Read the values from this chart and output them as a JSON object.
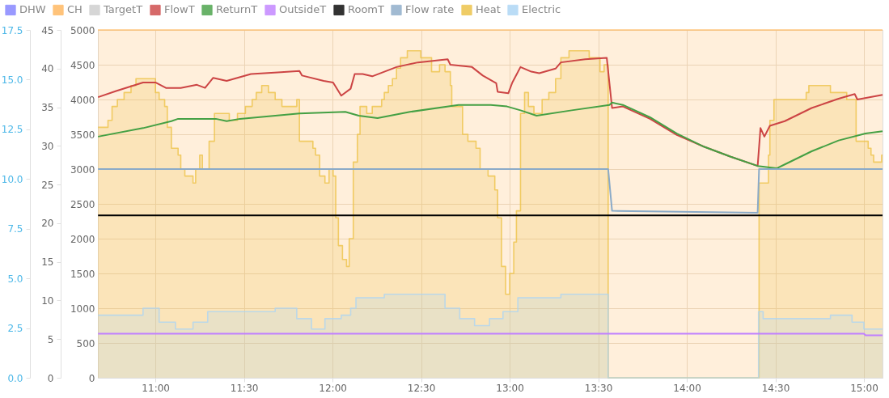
{
  "chart_data": {
    "type": "line",
    "xlim": [
      10.675,
      15.105
    ],
    "xticks": [
      {
        "value": 11,
        "label": "11:00"
      },
      {
        "value": 11.5,
        "label": "11:30"
      },
      {
        "value": 12,
        "label": "12:00"
      },
      {
        "value": 12.5,
        "label": "12:30"
      },
      {
        "value": 13,
        "label": "13:00"
      },
      {
        "value": 13.5,
        "label": "13:30"
      },
      {
        "value": 14,
        "label": "14:00"
      },
      {
        "value": 14.5,
        "label": "14:30"
      },
      {
        "value": 15,
        "label": "15:00"
      }
    ],
    "ylim": [
      0,
      5000
    ],
    "yticks": [
      0,
      500,
      1000,
      1500,
      2000,
      2500,
      3000,
      3500,
      4000,
      4500,
      5000
    ],
    "y2lim": [
      0,
      45
    ],
    "y2ticks": [
      0,
      5,
      10,
      15,
      20,
      25,
      30,
      35,
      40,
      45
    ],
    "y3lim": [
      0,
      17.5
    ],
    "y3ticks": [
      {
        "value": 0,
        "label": "0.0"
      },
      2.5,
      {
        "value": 5,
        "label": "5.0"
      },
      7.5,
      {
        "value": 10,
        "label": "10.0"
      },
      12.5,
      {
        "value": 15,
        "label": "15.0"
      },
      17.5
    ],
    "grid": true,
    "legend": "top left",
    "series": [
      {
        "name": "DHW",
        "color": "#8080ff",
        "type": "area"
      },
      {
        "name": "CH",
        "color": "#ffb55a",
        "type": "area",
        "x": [
          10.675,
          15.105
        ],
        "values": [
          5000,
          5000
        ]
      },
      {
        "name": "TargetT",
        "color": "#cccccc",
        "type": "line",
        "axis": "y2"
      },
      {
        "name": "FlowT",
        "color": "#cc4444",
        "type": "line",
        "axis": "y2",
        "x": [
          10.676,
          10.778,
          10.93,
          11.0,
          11.059,
          11.143,
          11.234,
          11.28,
          11.326,
          11.402,
          11.539,
          11.691,
          11.813,
          11.828,
          11.95,
          12.003,
          12.049,
          12.102,
          12.125,
          12.17,
          12.224,
          12.361,
          12.482,
          12.65,
          12.665,
          12.787,
          12.848,
          12.924,
          12.932,
          12.992,
          13.015,
          13.061,
          13.122,
          13.167,
          13.259,
          13.289,
          13.426,
          13.548,
          13.578,
          13.639,
          13.792,
          13.944,
          14.096,
          14.248,
          14.4,
          14.416,
          14.438,
          14.469,
          14.553,
          14.705,
          14.857,
          14.948,
          14.963,
          15.105
        ],
        "values": [
          36.3,
          37.1,
          38.2,
          38.2,
          37.5,
          37.5,
          37.9,
          37.5,
          38.8,
          38.4,
          39.3,
          39.5,
          39.7,
          39.1,
          38.4,
          38.2,
          36.5,
          37.4,
          39.3,
          39.3,
          39.0,
          40.2,
          40.8,
          41.2,
          40.5,
          40.2,
          39.1,
          38.1,
          37.0,
          36.8,
          38.2,
          40.2,
          39.6,
          39.4,
          40.0,
          40.8,
          41.2,
          41.4,
          34.9,
          35.1,
          33.5,
          31.4,
          29.9,
          28.6,
          27.4,
          32.3,
          31.2,
          32.6,
          33.2,
          34.9,
          36.1,
          36.7,
          36.0,
          36.6
        ]
      },
      {
        "name": "ReturnT",
        "color": "#44a044",
        "type": "line",
        "axis": "y2",
        "x": [
          10.676,
          10.93,
          11.09,
          11.128,
          11.341,
          11.402,
          11.478,
          11.813,
          12.072,
          12.148,
          12.254,
          12.437,
          12.711,
          12.893,
          12.985,
          13.061,
          13.152,
          13.35,
          13.563,
          13.578,
          13.639,
          13.792,
          13.944,
          14.096,
          14.248,
          14.4,
          14.507,
          14.553,
          14.705,
          14.857,
          15.009,
          15.105
        ],
        "values": [
          31.2,
          32.3,
          33.2,
          33.5,
          33.5,
          33.2,
          33.5,
          34.2,
          34.4,
          33.9,
          33.6,
          34.4,
          35.3,
          35.3,
          35.1,
          34.6,
          33.9,
          34.6,
          35.3,
          35.6,
          35.3,
          33.7,
          31.6,
          29.9,
          28.6,
          27.4,
          27.1,
          27.6,
          29.3,
          30.7,
          31.6,
          31.9
        ]
      },
      {
        "name": "OutsideT",
        "color": "#c080ff",
        "type": "line",
        "axis": "y2",
        "x": [
          10.676,
          15.0,
          15.009,
          15.105
        ],
        "values": [
          5.7,
          5.7,
          5.5,
          5.5
        ]
      },
      {
        "name": "RoomT",
        "color": "#000000",
        "type": "line",
        "axis": "y2",
        "x": [
          10.676,
          15.105
        ],
        "values": [
          21,
          21
        ]
      },
      {
        "name": "Flow rate",
        "color": "#8aaac8",
        "type": "line",
        "axis": "y3",
        "x": [
          10.676,
          13.556,
          13.578,
          14.4,
          14.408,
          15.105
        ],
        "values": [
          10.5,
          10.5,
          8.4,
          8.3,
          10.5,
          10.5
        ]
      },
      {
        "name": "Heat",
        "color": "#ecc040",
        "type": "area",
        "x": [
          10.676,
          10.732,
          10.755,
          10.785,
          10.823,
          10.862,
          10.89,
          11.0,
          11.021,
          11.052,
          11.067,
          11.09,
          11.128,
          11.143,
          11.166,
          11.212,
          11.227,
          11.25,
          11.265,
          11.303,
          11.333,
          11.417,
          11.463,
          11.508,
          11.546,
          11.569,
          11.6,
          11.638,
          11.676,
          11.714,
          11.798,
          11.813,
          11.889,
          11.904,
          11.927,
          11.957,
          11.98,
          12.003,
          12.018,
          12.033,
          12.056,
          12.079,
          12.094,
          12.117,
          12.14,
          12.155,
          12.193,
          12.224,
          12.277,
          12.292,
          12.315,
          12.338,
          12.361,
          12.384,
          12.422,
          12.498,
          12.559,
          12.604,
          12.635,
          12.665,
          12.673,
          12.734,
          12.764,
          12.81,
          12.833,
          12.878,
          12.916,
          12.932,
          12.954,
          12.977,
          13.0,
          13.023,
          13.038,
          13.061,
          13.084,
          13.106,
          13.137,
          13.183,
          13.221,
          13.259,
          13.289,
          13.335,
          13.449,
          13.51,
          13.533,
          13.556,
          14.408,
          14.461,
          14.469,
          14.492,
          14.674,
          14.689,
          14.811,
          14.903,
          14.956,
          15.024,
          15.04,
          15.055,
          15.1,
          15.105
        ],
        "values": [
          3600,
          3700,
          3900,
          4000,
          4100,
          4200,
          4300,
          4100,
          4000,
          3900,
          3600,
          3300,
          3200,
          3000,
          2900,
          2800,
          3000,
          3200,
          3000,
          3400,
          3800,
          3700,
          3800,
          3900,
          4000,
          4100,
          4200,
          4100,
          4000,
          3900,
          4000,
          3400,
          3300,
          3200,
          2900,
          2800,
          3000,
          2900,
          2300,
          1900,
          1700,
          1600,
          2000,
          3100,
          3500,
          3900,
          3800,
          3900,
          4000,
          4100,
          4200,
          4300,
          4450,
          4600,
          4700,
          4600,
          4400,
          4500,
          4400,
          4200,
          3900,
          3500,
          3400,
          3300,
          3000,
          2900,
          2700,
          2300,
          1600,
          1200,
          1500,
          1950,
          2400,
          3800,
          4100,
          3900,
          3800,
          4000,
          4100,
          4300,
          4600,
          4700,
          4600,
          4400,
          4500,
          0,
          2800,
          3200,
          3700,
          4000,
          4100,
          4200,
          4100,
          4000,
          3400,
          3300,
          3200,
          3100,
          3200,
          3200
        ]
      },
      {
        "name": "Electric",
        "color": "#aad4f5",
        "type": "area",
        "x": [
          10.676,
          10.93,
          11.021,
          11.113,
          11.212,
          11.295,
          11.676,
          11.798,
          11.881,
          11.957,
          12.049,
          12.102,
          12.132,
          12.292,
          12.635,
          12.718,
          12.802,
          12.886,
          12.962,
          13.046,
          13.289,
          13.556,
          14.405,
          14.431,
          14.811,
          14.933,
          15.0,
          15.105
        ],
        "values": [
          900,
          1000,
          800,
          700,
          800,
          950,
          1000,
          850,
          700,
          850,
          900,
          1000,
          1150,
          1200,
          1000,
          850,
          750,
          850,
          950,
          1150,
          1200,
          0,
          950,
          850,
          900,
          800,
          700,
          700
        ]
      }
    ]
  }
}
